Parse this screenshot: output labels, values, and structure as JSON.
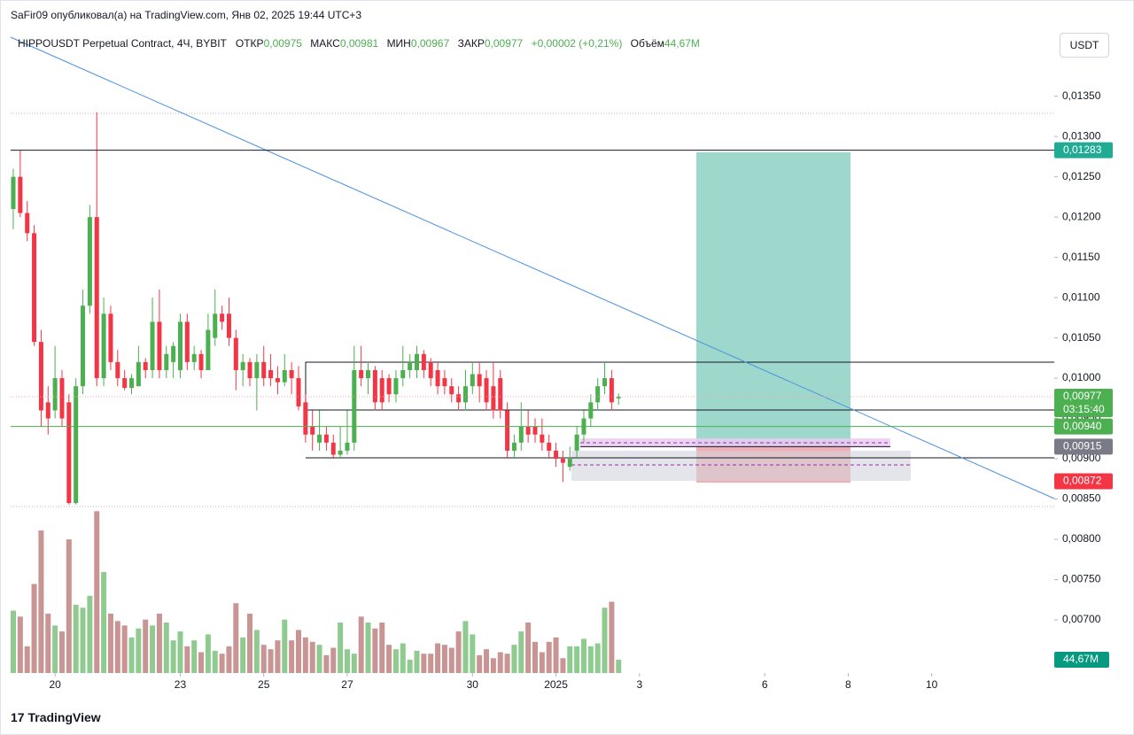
{
  "header": {
    "author_line": "SaFir09 опубликовал(а) на TradingView.com, Янв 02, 2025 19:44 UTC+3",
    "symbol": "HIPPOUSDT Perpetual Contract, 4Ч, BYBIT",
    "open_label": "ОТКР",
    "open": "0,00975",
    "high_label": "МАКС",
    "high": "0,00981",
    "low_label": "МИН",
    "low": "0,00967",
    "close_label": "ЗАКР",
    "close": "0,00977",
    "change": "+0,00002 (+0,21%)",
    "volume_label": "Объём",
    "volume": "44,67M",
    "currency": "USDT",
    "brand": "TradingView"
  },
  "chart_data": {
    "type": "candlestick",
    "up_color": "#4caf50",
    "down_color": "#f23645",
    "volume_up_color": "#8fcb91",
    "volume_down_color": "#c99594",
    "open": [
      0.0121,
      0.0125,
      0.01205,
      0.0118,
      0.01045,
      0.0097,
      0.0096,
      0.01,
      0.0097,
      0.00845,
      0.0099,
      0.0109,
      0.012,
      0.01,
      0.0108,
      0.0102,
      0.01,
      0.00988,
      0.0099,
      0.0102,
      0.0101,
      0.0107,
      0.0101,
      0.0102,
      0.0101,
      0.0107,
      0.0102,
      0.0103,
      0.0101,
      0.0105,
      0.0108,
      0.0108,
      0.0105,
      0.0101,
      0.0102,
      0.01,
      0.0102,
      0.0101,
      0.01,
      0.00995,
      0.0101,
      0.01,
      0.0097,
      0.0094,
      0.0092,
      0.0093,
      0.0092,
      0.00905,
      0.0091,
      0.0092,
      0.0101,
      0.01,
      0.0101,
      0.01,
      0.01,
      0.0098,
      0.01,
      0.0101,
      0.0101,
      0.0103,
      0.0102,
      0.0101,
      0.01,
      0.0099,
      0.0098,
      0.0097,
      0.0099,
      0.01005,
      0.01,
      0.0099,
      0.01,
      0.0096,
      0.0091,
      0.0092,
      0.0094,
      0.0094,
      0.0093,
      0.0092,
      0.0091,
      0.009,
      0.0089,
      0.0091,
      0.0093,
      0.0095,
      0.0097,
      0.0099,
      0.01,
      0.00975
    ],
    "high": [
      0.0126,
      0.01283,
      0.0122,
      0.0119,
      0.0106,
      0.0099,
      0.0104,
      0.0101,
      0.0098,
      0.01,
      0.0111,
      0.01215,
      0.0133,
      0.011,
      0.0109,
      0.01035,
      0.0101,
      0.01005,
      0.0104,
      0.01025,
      0.011,
      0.0111,
      0.0104,
      0.01045,
      0.0108,
      0.0108,
      0.0104,
      0.01035,
      0.0108,
      0.0111,
      0.0109,
      0.011,
      0.0106,
      0.0103,
      0.01025,
      0.0103,
      0.0104,
      0.0103,
      0.01015,
      0.0103,
      0.0102,
      0.01015,
      0.0098,
      0.0096,
      0.0096,
      0.0094,
      0.0093,
      0.0094,
      0.0096,
      0.0104,
      0.0104,
      0.0102,
      0.01015,
      0.0101,
      0.01005,
      0.0101,
      0.0104,
      0.0103,
      0.0104,
      0.01035,
      0.01025,
      0.0102,
      0.0101,
      0.01,
      0.0099,
      0.0101,
      0.0102,
      0.0102,
      0.0101,
      0.0102,
      0.0101,
      0.0097,
      0.0093,
      0.0097,
      0.0096,
      0.0095,
      0.0095,
      0.0093,
      0.0092,
      0.0091,
      0.00915,
      0.0094,
      0.0096,
      0.0098,
      0.01,
      0.0102,
      0.0101,
      0.00981
    ],
    "low": [
      0.01185,
      0.012,
      0.0117,
      0.0104,
      0.0094,
      0.0093,
      0.0095,
      0.0094,
      0.00843,
      0.00843,
      0.0098,
      0.0108,
      0.0099,
      0.0099,
      0.0101,
      0.0099,
      0.00985,
      0.0098,
      0.0099,
      0.01,
      0.01,
      0.01,
      0.01,
      0.01,
      0.01,
      0.0101,
      0.0101,
      0.01,
      0.0101,
      0.0104,
      0.0106,
      0.0104,
      0.00985,
      0.0099,
      0.0099,
      0.0096,
      0.0099,
      0.0099,
      0.0098,
      0.0099,
      0.0098,
      0.0096,
      0.0092,
      0.0091,
      0.0091,
      0.0091,
      0.009,
      0.009,
      0.00905,
      0.0091,
      0.0099,
      0.0098,
      0.0096,
      0.0096,
      0.0097,
      0.0097,
      0.0099,
      0.01,
      0.01,
      0.01,
      0.0099,
      0.0098,
      0.0098,
      0.0097,
      0.0096,
      0.0096,
      0.0098,
      0.0097,
      0.0096,
      0.0095,
      0.0095,
      0.009,
      0.009,
      0.0091,
      0.0092,
      0.0092,
      0.0091,
      0.009,
      0.0089,
      0.00871,
      0.00885,
      0.009,
      0.0092,
      0.0094,
      0.0096,
      0.0098,
      0.0096,
      0.00967
    ],
    "close": [
      0.0125,
      0.01205,
      0.0118,
      0.01045,
      0.0096,
      0.0095,
      0.01,
      0.0095,
      0.00845,
      0.0099,
      0.0109,
      0.012,
      0.01,
      0.0108,
      0.0102,
      0.01,
      0.00988,
      0.01,
      0.0102,
      0.0101,
      0.0107,
      0.0101,
      0.0103,
      0.0104,
      0.0107,
      0.0102,
      0.0103,
      0.0101,
      0.0106,
      0.0108,
      0.0107,
      0.0105,
      0.0101,
      0.0102,
      0.01,
      0.0102,
      0.01,
      0.01,
      0.00995,
      0.0101,
      0.01,
      0.00965,
      0.0093,
      0.0093,
      0.0093,
      0.0092,
      0.00905,
      0.0091,
      0.0092,
      0.0101,
      0.01,
      0.0101,
      0.0097,
      0.0097,
      0.0098,
      0.01,
      0.0101,
      0.0102,
      0.0103,
      0.0101,
      0.01,
      0.0099,
      0.0099,
      0.0098,
      0.0097,
      0.0099,
      0.01005,
      0.0099,
      0.0097,
      0.0096,
      0.0096,
      0.0091,
      0.0092,
      0.0094,
      0.0093,
      0.0093,
      0.0092,
      0.0091,
      0.009,
      0.00895,
      0.009,
      0.0093,
      0.0095,
      0.0097,
      0.0099,
      0.01,
      0.0097,
      0.00977
    ],
    "volume": [
      210,
      190,
      90,
      300,
      480,
      200,
      160,
      140,
      450,
      230,
      220,
      260,
      545,
      340,
      200,
      175,
      160,
      120,
      150,
      180,
      160,
      200,
      170,
      110,
      140,
      90,
      110,
      70,
      130,
      75,
      65,
      90,
      235,
      120,
      200,
      145,
      95,
      80,
      110,
      180,
      110,
      145,
      120,
      105,
      95,
      60,
      85,
      170,
      80,
      65,
      190,
      170,
      150,
      170,
      95,
      80,
      100,
      45,
      75,
      65,
      65,
      100,
      95,
      85,
      140,
      175,
      130,
      60,
      80,
      50,
      70,
      65,
      95,
      140,
      170,
      105,
      70,
      105,
      120,
      50,
      90,
      90,
      115,
      90,
      100,
      220,
      240,
      44.67
    ],
    "volume_value_label": "44,67M",
    "volume_label_color": "#089981",
    "xlim": [
      0,
      150
    ],
    "ylim": [
      0.00634,
      0.01431
    ],
    "vlim": [
      0,
      680
    ],
    "xticks": [
      {
        "value": 6,
        "label": "20"
      },
      {
        "value": 24,
        "label": "23"
      },
      {
        "value": 36,
        "label": "25"
      },
      {
        "value": 48,
        "label": "27"
      },
      {
        "value": 66,
        "label": "30"
      },
      {
        "value": 78,
        "label": "2025"
      },
      {
        "value": 90,
        "label": "3"
      },
      {
        "value": 108,
        "label": "6"
      },
      {
        "value": 120,
        "label": "8"
      },
      {
        "value": 132,
        "label": "10"
      }
    ],
    "yticks": [
      {
        "value": 0.007,
        "label": "0,00700"
      },
      {
        "value": 0.0075,
        "label": "0,00750"
      },
      {
        "value": 0.008,
        "label": "0,00800"
      },
      {
        "value": 0.0085,
        "label": "0,00850"
      },
      {
        "value": 0.009,
        "label": "0,00900"
      },
      {
        "value": 0.0095,
        "label": "0,00950"
      },
      {
        "value": 0.01,
        "label": "0,01000"
      },
      {
        "value": 0.0105,
        "label": "0,01050"
      },
      {
        "value": 0.011,
        "label": "0,01100"
      },
      {
        "value": 0.0115,
        "label": "0,01150"
      },
      {
        "value": 0.012,
        "label": "0,01200"
      },
      {
        "value": 0.0125,
        "label": "0,01250"
      },
      {
        "value": 0.013,
        "label": "0,01300"
      },
      {
        "value": 0.0135,
        "label": "0,01350"
      }
    ],
    "markers": [
      {
        "value": 0.01283,
        "label": "0,01283",
        "color": "#22ab94"
      },
      {
        "value": 0.00977,
        "label": "0,00977",
        "sublabel": "03:15:40",
        "color": "#4caf50"
      },
      {
        "value": 0.0094,
        "label": "0,00940",
        "color": "#4caf50"
      },
      {
        "value": 0.00915,
        "label": "0,00915",
        "color": "#787b86"
      },
      {
        "value": 0.00872,
        "label": "0,00872",
        "color": "#f23645"
      }
    ]
  }
}
